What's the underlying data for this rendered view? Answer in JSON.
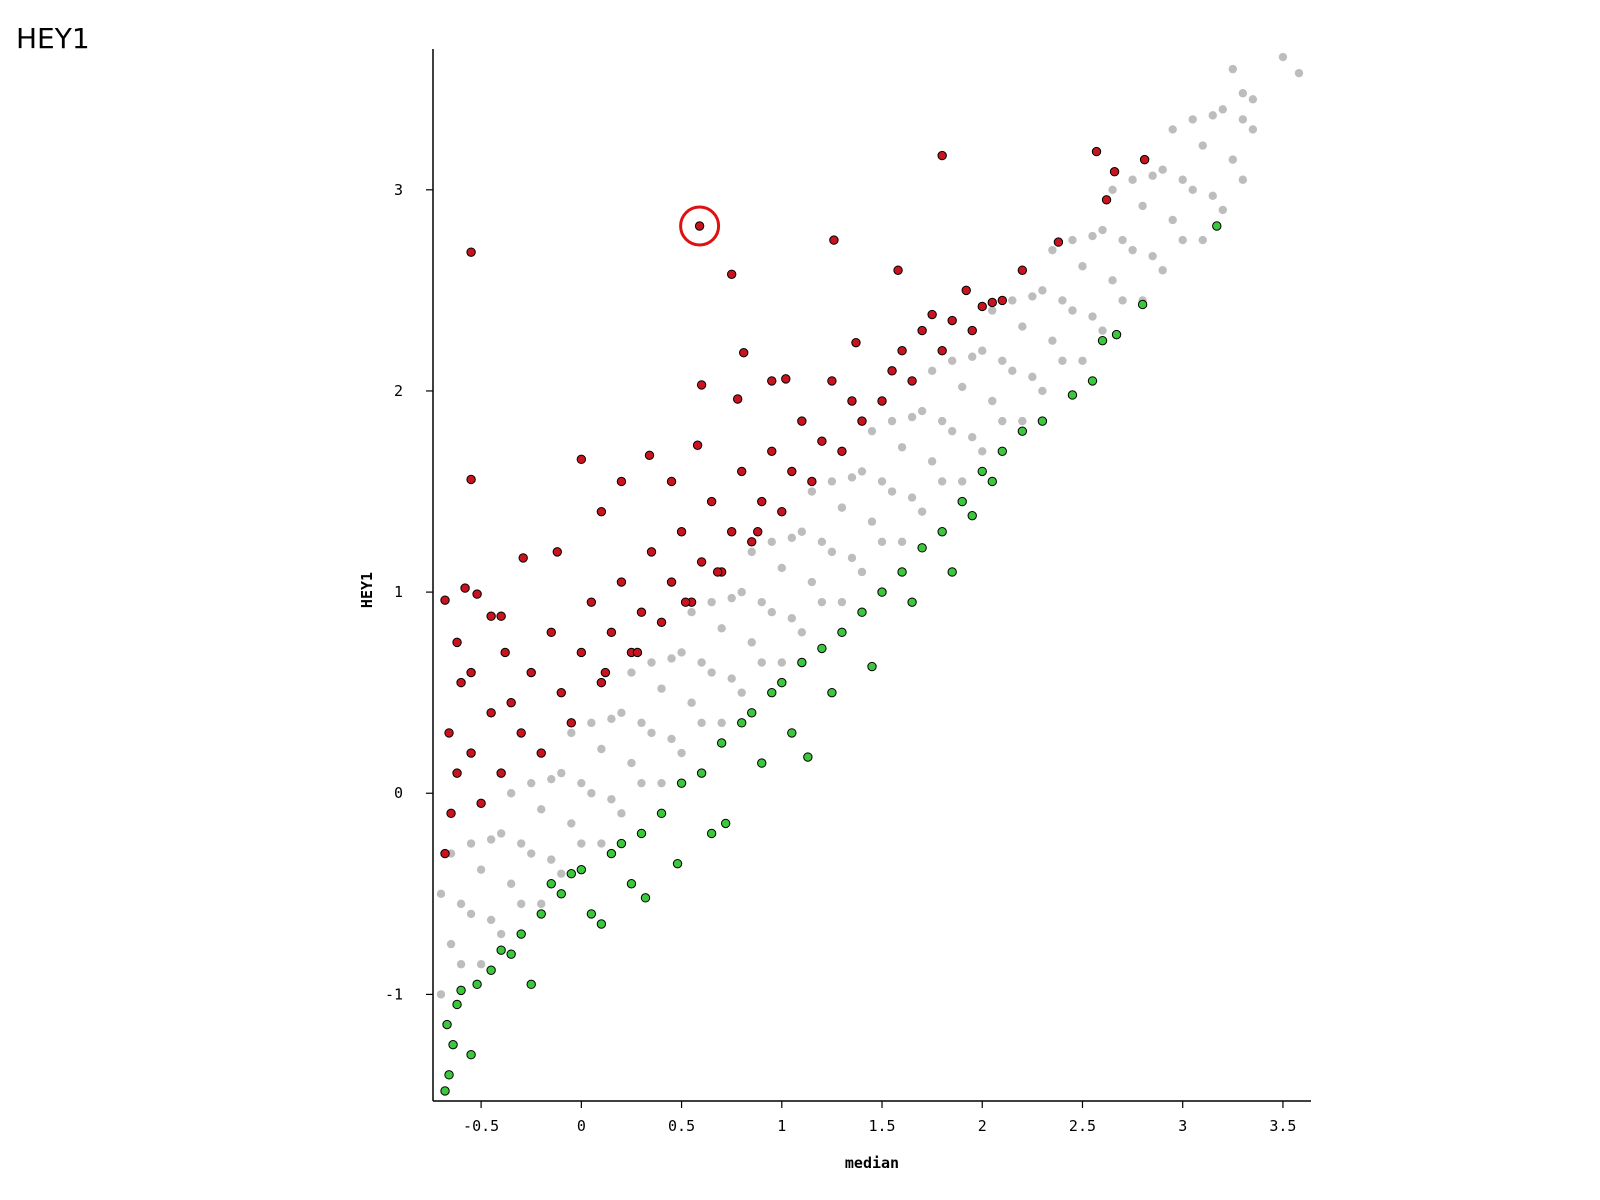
{
  "chart_data": {
    "type": "scatter",
    "title": "HEY1",
    "xlabel": "median",
    "ylabel": "HEY1",
    "xlim": [
      -0.74,
      3.64
    ],
    "ylim": [
      -1.53,
      3.7
    ],
    "xticks": [
      -0.5,
      0,
      0.5,
      1,
      1.5,
      2,
      2.5,
      3,
      3.5
    ],
    "yticks": [
      -1,
      0,
      1,
      2,
      3
    ],
    "grid": false,
    "series": [
      {
        "color": "#bdbdbd",
        "outline": false,
        "x": [
          -0.7,
          -0.7,
          -0.65,
          -0.65,
          -0.6,
          -0.6,
          -0.55,
          -0.55,
          -0.5,
          -0.5,
          -0.45,
          -0.45,
          -0.4,
          -0.4,
          -0.35,
          -0.35,
          -0.3,
          -0.3,
          -0.25,
          -0.25,
          -0.2,
          -0.2,
          -0.15,
          -0.15,
          -0.1,
          -0.1,
          -0.05,
          -0.05,
          0.0,
          0.0,
          0.05,
          0.05,
          0.1,
          0.1,
          0.15,
          0.15,
          0.2,
          0.2,
          0.25,
          0.25,
          0.3,
          0.3,
          0.35,
          0.35,
          0.4,
          0.4,
          0.45,
          0.45,
          0.5,
          0.5,
          0.55,
          0.55,
          0.6,
          0.6,
          0.65,
          0.65,
          0.7,
          0.7,
          0.75,
          0.75,
          0.8,
          0.8,
          0.85,
          0.85,
          0.9,
          0.9,
          0.95,
          0.95,
          1.0,
          1.0,
          1.05,
          1.05,
          1.1,
          1.1,
          1.15,
          1.15,
          1.2,
          1.2,
          1.25,
          1.25,
          1.3,
          1.3,
          1.35,
          1.35,
          1.4,
          1.4,
          1.45,
          1.45,
          1.5,
          1.5,
          1.55,
          1.55,
          1.6,
          1.6,
          1.65,
          1.65,
          1.7,
          1.7,
          1.75,
          1.75,
          1.8,
          1.8,
          1.85,
          1.85,
          1.9,
          1.9,
          1.95,
          1.95,
          2.0,
          2.0,
          2.05,
          2.05,
          2.1,
          2.1,
          2.15,
          2.15,
          2.2,
          2.2,
          2.25,
          2.25,
          2.3,
          2.3,
          2.35,
          2.35,
          2.4,
          2.4,
          2.45,
          2.45,
          2.5,
          2.5,
          2.55,
          2.55,
          2.6,
          2.6,
          2.65,
          2.65,
          2.7,
          2.7,
          2.75,
          2.75,
          2.8,
          2.8,
          2.85,
          2.85,
          2.9,
          2.9,
          2.95,
          2.95,
          3.0,
          3.0,
          3.05,
          3.05,
          3.1,
          3.1,
          3.15,
          3.15,
          3.2,
          3.2,
          3.25,
          3.25,
          3.3,
          3.3,
          3.35,
          3.35,
          3.5,
          3.58,
          3.3
        ],
        "y": [
          -1.0,
          -0.5,
          -0.75,
          -0.3,
          -0.55,
          -0.85,
          -0.25,
          -0.6,
          -0.85,
          -0.38,
          -0.23,
          -0.63,
          -0.7,
          -0.2,
          -0.45,
          0.0,
          -0.25,
          -0.55,
          0.05,
          -0.3,
          -0.55,
          -0.08,
          0.07,
          -0.33,
          -0.4,
          0.1,
          -0.15,
          0.3,
          0.05,
          -0.25,
          0.35,
          0.0,
          -0.25,
          0.22,
          0.37,
          -0.03,
          -0.1,
          0.4,
          0.15,
          0.6,
          0.35,
          0.05,
          0.65,
          0.3,
          0.05,
          0.52,
          0.67,
          0.27,
          0.2,
          0.7,
          0.45,
          0.9,
          0.65,
          0.35,
          0.95,
          0.6,
          0.35,
          0.82,
          0.97,
          0.57,
          0.5,
          1.0,
          0.75,
          1.2,
          0.95,
          0.65,
          1.25,
          0.9,
          0.65,
          1.12,
          1.27,
          0.87,
          0.8,
          1.3,
          1.05,
          1.5,
          1.25,
          0.95,
          1.55,
          1.2,
          0.95,
          1.42,
          1.57,
          1.17,
          1.1,
          1.6,
          1.35,
          1.8,
          1.55,
          1.25,
          1.85,
          1.5,
          1.25,
          1.72,
          1.87,
          1.47,
          1.4,
          1.9,
          1.65,
          2.1,
          1.85,
          1.55,
          2.15,
          1.8,
          1.55,
          2.02,
          2.17,
          1.77,
          1.7,
          2.2,
          1.95,
          2.4,
          2.15,
          1.85,
          2.45,
          2.1,
          1.85,
          2.32,
          2.47,
          2.07,
          2.0,
          2.5,
          2.25,
          2.7,
          2.45,
          2.15,
          2.75,
          2.4,
          2.15,
          2.62,
          2.77,
          2.37,
          2.3,
          2.8,
          2.55,
          3.0,
          2.75,
          2.45,
          3.05,
          2.7,
          2.45,
          2.92,
          3.07,
          2.67,
          2.6,
          3.1,
          2.85,
          3.3,
          3.05,
          2.75,
          3.35,
          3.0,
          2.75,
          3.22,
          3.37,
          2.97,
          2.9,
          3.4,
          3.15,
          3.6,
          3.35,
          3.05,
          3.45,
          3.3,
          3.66,
          3.58,
          3.48
        ]
      },
      {
        "color": "#c8141e",
        "outline": true,
        "x": [
          0.59,
          -0.55,
          1.8,
          2.57,
          2.81,
          2.66,
          1.26,
          0.75,
          1.58,
          0.6,
          0.81,
          -0.55,
          0.0,
          0.2,
          0.34,
          -0.29,
          -0.12,
          -0.68,
          -0.58,
          -0.52,
          -0.45,
          -0.4,
          0.1,
          0.45,
          0.58,
          0.78,
          0.95,
          1.02,
          1.25,
          1.37,
          1.6,
          1.75,
          1.92,
          2.05,
          2.2,
          2.38,
          2.62,
          -0.68,
          -0.65,
          -0.62,
          -0.66,
          -0.6,
          -0.55,
          -0.5,
          -0.45,
          -0.4,
          -0.38,
          -0.3,
          -0.25,
          -0.2,
          -0.15,
          -0.1,
          -0.05,
          0.0,
          0.05,
          0.1,
          0.15,
          0.2,
          0.25,
          0.3,
          0.35,
          0.4,
          0.45,
          0.5,
          0.55,
          0.6,
          0.65,
          0.7,
          0.75,
          0.8,
          0.85,
          0.9,
          0.95,
          1.0,
          1.05,
          1.1,
          1.15,
          1.2,
          1.3,
          1.35,
          1.4,
          1.5,
          1.55,
          1.65,
          1.7,
          1.8,
          1.85,
          1.95,
          2.0,
          2.1,
          -0.55,
          -0.62,
          -0.35,
          0.12,
          0.28,
          0.52,
          0.68,
          0.88
        ],
        "y": [
          2.82,
          2.69,
          3.17,
          3.19,
          3.15,
          3.09,
          2.75,
          2.58,
          2.6,
          2.03,
          2.19,
          1.56,
          1.66,
          1.55,
          1.68,
          1.17,
          1.2,
          0.96,
          1.02,
          0.99,
          0.88,
          0.88,
          1.4,
          1.55,
          1.73,
          1.96,
          2.05,
          2.06,
          2.05,
          2.24,
          2.2,
          2.38,
          2.5,
          2.44,
          2.6,
          2.74,
          2.95,
          -0.3,
          -0.1,
          0.1,
          0.3,
          0.55,
          0.2,
          -0.05,
          0.4,
          0.1,
          0.7,
          0.3,
          0.6,
          0.2,
          0.8,
          0.5,
          0.35,
          0.7,
          0.95,
          0.55,
          0.8,
          1.05,
          0.7,
          0.9,
          1.2,
          0.85,
          1.05,
          1.3,
          0.95,
          1.15,
          1.45,
          1.1,
          1.3,
          1.6,
          1.25,
          1.45,
          1.7,
          1.4,
          1.6,
          1.85,
          1.55,
          1.75,
          1.7,
          1.95,
          1.85,
          1.95,
          2.1,
          2.05,
          2.3,
          2.2,
          2.35,
          2.3,
          2.42,
          2.45,
          0.6,
          0.75,
          0.45,
          0.6,
          0.7,
          0.95,
          1.1,
          1.3
        ]
      },
      {
        "color": "#3cc83c",
        "outline": true,
        "x": [
          -0.68,
          -0.66,
          -0.64,
          -0.67,
          -0.62,
          -0.6,
          -0.55,
          -0.52,
          -0.45,
          -0.4,
          -0.35,
          -0.3,
          -0.25,
          -0.2,
          -0.15,
          -0.1,
          -0.05,
          0.0,
          0.05,
          0.1,
          0.15,
          0.2,
          0.25,
          0.3,
          0.32,
          0.4,
          0.48,
          0.5,
          0.6,
          0.65,
          0.7,
          0.72,
          0.8,
          0.85,
          0.9,
          0.95,
          1.0,
          1.05,
          1.1,
          1.13,
          1.2,
          1.25,
          1.3,
          1.4,
          1.45,
          1.5,
          1.6,
          1.65,
          1.7,
          1.8,
          1.85,
          1.9,
          1.95,
          2.0,
          2.05,
          2.1,
          2.2,
          2.3,
          2.45,
          2.55,
          2.6,
          2.67,
          2.8,
          3.17
        ],
        "y": [
          -1.48,
          -1.4,
          -1.25,
          -1.15,
          -1.05,
          -0.98,
          -1.3,
          -0.95,
          -0.88,
          -0.78,
          -0.8,
          -0.7,
          -0.95,
          -0.6,
          -0.45,
          -0.5,
          -0.4,
          -0.38,
          -0.6,
          -0.65,
          -0.3,
          -0.25,
          -0.45,
          -0.2,
          -0.52,
          -0.1,
          -0.35,
          0.05,
          0.1,
          -0.2,
          0.25,
          -0.15,
          0.35,
          0.4,
          0.15,
          0.5,
          0.55,
          0.3,
          0.65,
          0.18,
          0.72,
          0.5,
          0.8,
          0.9,
          0.63,
          1.0,
          1.1,
          0.95,
          1.22,
          1.3,
          1.1,
          1.45,
          1.38,
          1.6,
          1.55,
          1.7,
          1.8,
          1.85,
          1.98,
          2.05,
          2.25,
          2.28,
          2.43,
          2.82
        ]
      }
    ]
  }
}
